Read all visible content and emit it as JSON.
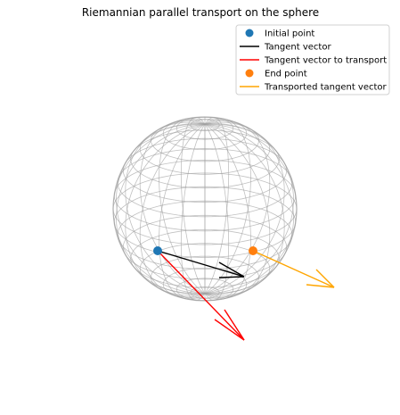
{
  "chart_data": {
    "type": "scatter",
    "title": "Riemannian parallel transport on the sphere",
    "xlabel": "",
    "ylabel": "",
    "axes_visible": false,
    "grid": false,
    "legend_position": "top-right",
    "sphere": {
      "radius": 1,
      "style": "wireframe",
      "color": "#a0a0a0"
    },
    "series": [
      {
        "name": "Initial point",
        "kind": "point",
        "color": "#1f77b4"
      },
      {
        "name": "Tangent vector",
        "kind": "line",
        "color": "#000000"
      },
      {
        "name": "Tangent vector to transport",
        "kind": "line",
        "color": "#ff0000"
      },
      {
        "name": "End point",
        "kind": "point",
        "color": "#ff7f0e"
      },
      {
        "name": "Transported tangent vector",
        "kind": "line",
        "color": "#ffa500"
      }
    ]
  }
}
